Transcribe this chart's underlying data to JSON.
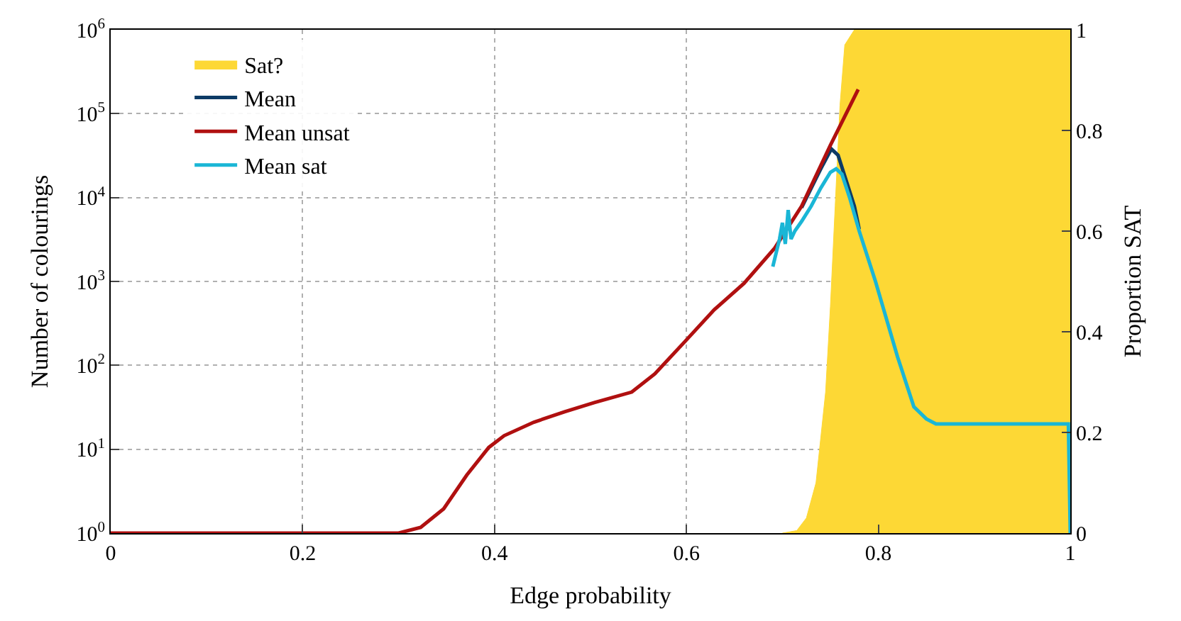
{
  "chart_data": {
    "type": "line",
    "xlabel": "Edge probability",
    "ylabel": "Number of colourings",
    "y2label": "Proportion SAT",
    "xlim": [
      0,
      1
    ],
    "xticks": [
      0,
      0.2,
      0.4,
      0.6,
      0.8,
      1
    ],
    "ylim": [
      1,
      1000000
    ],
    "log": "y",
    "yticks": [
      {
        "value": 1,
        "label": "10$^{0}$"
      },
      {
        "value": 10,
        "label": "10$^{1}$"
      },
      {
        "value": 100,
        "label": "10$^{2}$"
      },
      {
        "value": 1000,
        "label": "10$^{3}$"
      },
      {
        "value": 10000,
        "label": "10$^{4}$"
      },
      {
        "value": 100000,
        "label": "10$^{5}$"
      },
      {
        "value": 1000000,
        "label": "10$^{6}$"
      }
    ],
    "y2lim": [
      0,
      1
    ],
    "y2ticks": [
      0,
      0.2,
      0.4,
      0.6,
      0.8,
      1
    ],
    "grid": true,
    "legend": "top left",
    "line_style": "solid",
    "series": [
      {
        "name": "Sat?",
        "type": "area",
        "axis": "y2",
        "color": "#fdd835",
        "x": [
          0.7,
          0.715,
          0.725,
          0.735,
          0.745,
          0.75,
          0.755,
          0.76,
          0.765,
          0.775,
          0.9,
          1.0
        ],
        "values": [
          0,
          0.005,
          0.03,
          0.1,
          0.28,
          0.45,
          0.65,
          0.85,
          0.97,
          1,
          1,
          1
        ]
      },
      {
        "name": "Mean",
        "color": "#0d3b66",
        "x": [
          0.72,
          0.74,
          0.751,
          0.758,
          0.765,
          0.775,
          0.78
        ],
        "values": [
          7600,
          22000,
          38000,
          32000,
          18000,
          7900,
          4200
        ]
      },
      {
        "name": "Mean unsat",
        "type": "line",
        "color": "#b01010",
        "x": [
          0,
          0.3,
          0.323,
          0.347,
          0.371,
          0.394,
          0.41,
          0.441,
          0.473,
          0.504,
          0.543,
          0.567,
          0.598,
          0.629,
          0.66,
          0.692,
          0.72,
          0.75,
          0.779
        ],
        "values": [
          1,
          1,
          1.17,
          1.95,
          4.9,
          10.5,
          14.5,
          21,
          28,
          36,
          48,
          79,
          190,
          460,
          950,
          2500,
          7900,
          42000,
          195000
        ]
      },
      {
        "name": "Mean sat",
        "type": "line",
        "color": "#1ab6d6",
        "x": [
          0.69,
          0.697,
          0.7,
          0.703,
          0.706,
          0.709,
          0.713,
          0.72,
          0.73,
          0.74,
          0.75,
          0.756,
          0.762,
          0.77,
          0.78,
          0.797,
          0.82,
          0.837,
          0.85,
          0.86,
          0.9,
          0.998,
          1.0
        ],
        "values": [
          1500,
          3200,
          5000,
          2800,
          7100,
          3200,
          4000,
          5200,
          7900,
          13000,
          20000,
          22000,
          19000,
          10000,
          4000,
          1000,
          126,
          32,
          23,
          20,
          20,
          20,
          1
        ]
      }
    ]
  }
}
